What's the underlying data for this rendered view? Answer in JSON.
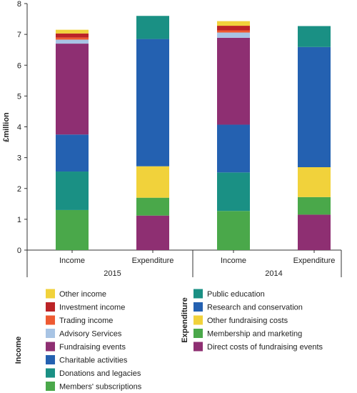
{
  "chart_data": {
    "type": "bar",
    "stacked": true,
    "ylabel": "£million",
    "ylim": [
      0,
      8
    ],
    "yticks": [
      0,
      1,
      2,
      3,
      4,
      5,
      6,
      7,
      8
    ],
    "grid": false,
    "groups": [
      {
        "label": "2015",
        "bars": [
          {
            "label": "Income",
            "kind": "income",
            "values": [
              1.3,
              1.25,
              1.2,
              2.95,
              0.13,
              0.07,
              0.13,
              0.12
            ]
          },
          {
            "label": "Expenditure",
            "kind": "expenditure",
            "values": [
              1.12,
              0.58,
              1.02,
              4.13,
              0.75
            ]
          }
        ]
      },
      {
        "label": "2014",
        "bars": [
          {
            "label": "Income",
            "kind": "income",
            "values": [
              1.27,
              1.25,
              1.55,
              2.82,
              0.17,
              0.07,
              0.15,
              0.15
            ]
          },
          {
            "label": "Expenditure",
            "kind": "expenditure",
            "values": [
              1.15,
              0.57,
              0.97,
              3.9,
              0.68
            ]
          }
        ]
      }
    ],
    "series": {
      "income": [
        {
          "name": "Members' subscriptions",
          "color": "#4aa84a"
        },
        {
          "name": "Donations and legacies",
          "color": "#1a9084"
        },
        {
          "name": "Charitable activities",
          "color": "#2461b1"
        },
        {
          "name": "Fundraising events",
          "color": "#8e2f72"
        },
        {
          "name": "Advisory Services",
          "color": "#a8c4e4"
        },
        {
          "name": "Trading income",
          "color": "#ee5a32"
        },
        {
          "name": "Investment income",
          "color": "#bb2327"
        },
        {
          "name": "Other income",
          "color": "#f1d23b"
        }
      ],
      "expenditure": [
        {
          "name": "Direct costs of fundraising events",
          "color": "#8e2f72"
        },
        {
          "name": "Membership and marketing",
          "color": "#4aa84a"
        },
        {
          "name": "Other fundraising costs",
          "color": "#f1d23b"
        },
        {
          "name": "Research and conservation",
          "color": "#2461b1"
        },
        {
          "name": "Public education",
          "color": "#1a9084"
        }
      ]
    },
    "legend": {
      "placement": "bottom",
      "income_title": "Income",
      "expenditure_title": "Expenditure",
      "income_order": [
        "Other income",
        "Investment income",
        "Trading income",
        "Advisory Services",
        "Fundraising events",
        "Charitable activities",
        "Donations and legacies",
        "Members' subscriptions"
      ],
      "expenditure_order": [
        "Public education",
        "Research and conservation",
        "Other fundraising costs",
        "Membership and marketing",
        "Direct costs of fundraising events"
      ]
    }
  }
}
